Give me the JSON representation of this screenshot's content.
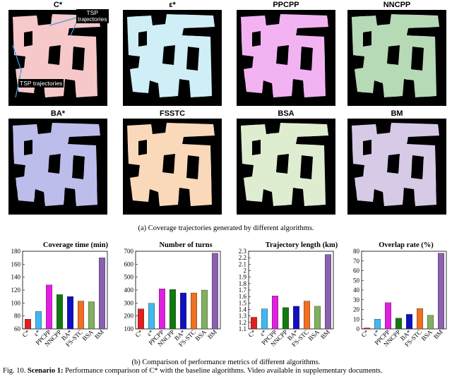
{
  "maps": [
    {
      "name": "C*",
      "color": "#e8767a"
    },
    {
      "name": "ε*",
      "color": "#7fd2e8"
    },
    {
      "name": "PPCPP",
      "color": "#e040e0"
    },
    {
      "name": "NNCPP",
      "color": "#3c9a3c"
    },
    {
      "name": "BA*",
      "color": "#5a5ad0"
    },
    {
      "name": "FSSTC",
      "color": "#f0a050"
    },
    {
      "name": "BSA",
      "color": "#a8cc80"
    },
    {
      "name": "BM",
      "color": "#9a7ac0"
    }
  ],
  "annotations": {
    "tsp_top": "TSP\ntrajectories",
    "tsp_left": "TSP trajectories"
  },
  "captions": {
    "a": "(a) Coverage trajectories generated by different algorithms.",
    "b": "(b) Comparison of performance metrics of different algorithms.",
    "fig_prefix": "Fig. 10. ",
    "fig_bold": "Scenario 1:",
    "fig_rest": " Performance comparison of C* with the baseline algorithms. Video available in supplementary documents."
  },
  "chart_data": [
    {
      "type": "bar",
      "title": "Coverage time (min)",
      "categories": [
        "C*",
        "ε*",
        "PPCPP",
        "NNCPP",
        "BA*",
        "FS-STC",
        "BSA",
        "BM"
      ],
      "values": [
        75,
        87,
        128,
        113,
        110,
        103,
        102,
        170
      ],
      "ylim": [
        60,
        180
      ],
      "yticks": [
        "60",
        "80",
        "100",
        "120",
        "140",
        "160",
        "180"
      ]
    },
    {
      "type": "bar",
      "title": "Number of turns",
      "categories": [
        "C*",
        "ε*",
        "PPCPP",
        "NNCPP",
        "BA*",
        "FS-STC",
        "BSA",
        "BM"
      ],
      "values": [
        255,
        298,
        410,
        405,
        378,
        378,
        400,
        685
      ],
      "ylim": [
        100,
        700
      ],
      "yticks": [
        "100",
        "200",
        "300",
        "400",
        "500",
        "600",
        "700"
      ]
    },
    {
      "type": "bar",
      "title": "Trajectory length (km)",
      "categories": [
        "C*",
        "ε*",
        "PPCPP",
        "NNCPP",
        "BA*",
        "FS-STC",
        "BSA",
        "BM"
      ],
      "values": [
        1.28,
        1.41,
        1.61,
        1.43,
        1.45,
        1.53,
        1.45,
        2.25
      ],
      "ylim": [
        1.1,
        2.3
      ],
      "yticks": [
        "1.1",
        "1.2",
        "1.3",
        "1.4",
        "1.5",
        "1.6",
        "1.7",
        "1.8",
        "1.9",
        "2",
        "2.1",
        "2.2",
        "2.3"
      ]
    },
    {
      "type": "bar",
      "title": "Overlap rate (%)",
      "categories": [
        "C*",
        "ε*",
        "PPCPP",
        "NNCPP",
        "BA*",
        "FS-STC",
        "BSA",
        "BM"
      ],
      "values": [
        1,
        10,
        27,
        11,
        15,
        21,
        14,
        78
      ],
      "ylim": [
        0,
        80
      ],
      "yticks": [
        "0",
        "10",
        "20",
        "30",
        "40",
        "50",
        "60",
        "70",
        "80"
      ]
    }
  ],
  "bar_colors": [
    "#e02020",
    "#40b8f0",
    "#e020e0",
    "#107a10",
    "#1010c0",
    "#f07020",
    "#80b060",
    "#8a60b0"
  ]
}
